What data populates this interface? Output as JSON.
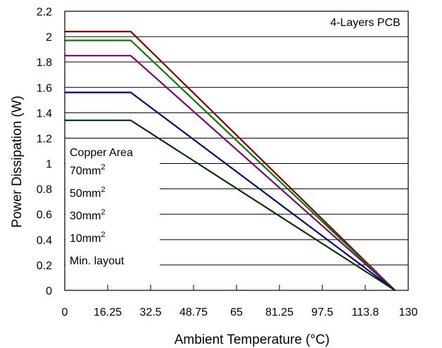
{
  "chart_data": {
    "type": "line",
    "annotation": "4-Layers PCB",
    "xlabel": "Ambient Temperature (°C)",
    "ylabel": "Power Dissipation (W)",
    "xlim": [
      0,
      130
    ],
    "ylim": [
      0,
      2.2
    ],
    "xticks": [
      0,
      16.25,
      32.5,
      48.75,
      65,
      81.25,
      97.5,
      113.75,
      130
    ],
    "xtick_labels": [
      "0",
      "16.25",
      "32.5",
      "48.75",
      "65",
      "81.25",
      "97.5",
      "113.8",
      "130"
    ],
    "yticks": [
      0,
      0.2,
      0.4,
      0.6,
      0.8,
      1,
      1.2,
      1.4,
      1.6,
      1.8,
      2,
      2.2
    ],
    "ytick_labels": [
      "0",
      "0.2",
      "0.4",
      "0.6",
      "0.8",
      "1",
      "1.2",
      "1.4",
      "1.6",
      "1.8",
      "2",
      "2.2"
    ],
    "grid": "horizontal",
    "legend": {
      "title": "Copper Area",
      "entries": [
        {
          "base": "70mm",
          "sup": "2"
        },
        {
          "base": "50mm",
          "sup": "2"
        },
        {
          "base": "30mm",
          "sup": "2"
        },
        {
          "base": "10mm",
          "sup": "2"
        },
        {
          "base": "Min. layout",
          "sup": ""
        }
      ]
    },
    "series": [
      {
        "color": "#800000",
        "x": [
          0,
          25,
          125
        ],
        "y": [
          2.04,
          2.04,
          0
        ]
      },
      {
        "color": "#008000",
        "x": [
          0,
          25,
          125
        ],
        "y": [
          1.97,
          1.97,
          0
        ]
      },
      {
        "color": "#800080",
        "x": [
          0,
          25,
          125
        ],
        "y": [
          1.85,
          1.85,
          0
        ]
      },
      {
        "color": "#000080",
        "x": [
          0,
          25,
          125
        ],
        "y": [
          1.56,
          1.56,
          0
        ]
      },
      {
        "color": "#003300",
        "x": [
          0,
          25,
          125
        ],
        "y": [
          1.34,
          1.34,
          0
        ]
      }
    ]
  }
}
